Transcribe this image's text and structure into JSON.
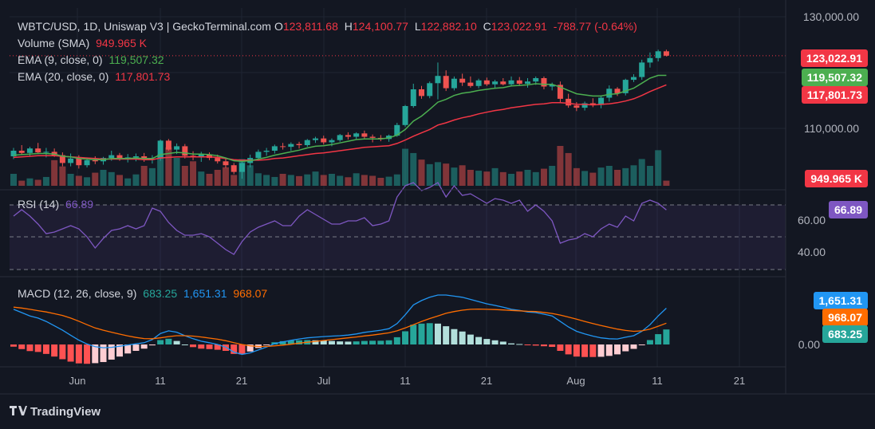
{
  "header": {
    "symbol": "WBTC/USD, 1D, Uniswap V3 | GeckoTerminal.com",
    "o_label": "O",
    "open": "123,811.68",
    "h_label": "H",
    "high": "124,100.77",
    "l_label": "L",
    "low": "122,882.10",
    "c_label": "C",
    "close": "123,022.91",
    "change": "-788.77 (-0.64%)"
  },
  "legend": {
    "volume_label": "Volume (SMA)",
    "volume_value": "949.965 K",
    "ema9_label": "EMA (9, close, 0)",
    "ema9_value": "119,507.32",
    "ema20_label": "EMA (20, close, 0)",
    "ema20_value": "117,801.73",
    "rsi_label": "RSI (14)",
    "rsi_value": "66.89",
    "macd_label": "MACD (12, 26, close, 9)",
    "macd_hist": "683.25",
    "macd_line": "1,651.31",
    "macd_signal": "968.07"
  },
  "price_axis": {
    "ticks": [
      "130,000.00",
      "110,000.00"
    ]
  },
  "rsi_axis": {
    "ticks": [
      "60.00",
      "40.00"
    ]
  },
  "macd_axis": {
    "ticks": [
      "0.00"
    ]
  },
  "price_tags": {
    "close": "123,022.91",
    "ema9": "119,507.32",
    "ema20": "117,801.73",
    "volume": "949.965 K",
    "rsi": "66.89",
    "macd_line": "1,651.31",
    "macd_signal": "968.07",
    "macd_hist": "683.25"
  },
  "x_axis": {
    "ticks": [
      "Jun",
      "11",
      "21",
      "Jul",
      "11",
      "21",
      "Aug",
      "11",
      "21"
    ]
  },
  "brand": {
    "name": "TradingView"
  },
  "colors": {
    "up": "#26a69a",
    "down": "#ef5350",
    "ema9": "#4caf50",
    "ema20": "#f23645",
    "rsi": "#7e57c2",
    "macd": "#2196f3",
    "signal": "#ff6d00",
    "background": "#131722"
  },
  "chart_data": [
    {
      "type": "candlestick",
      "title": "WBTC/USD, 1D, Uniswap V3",
      "ylim": [
        103000,
        131000
      ],
      "ohlc": [
        [
          105000,
          106500,
          104500,
          106000
        ],
        [
          106000,
          107000,
          105200,
          105600
        ],
        [
          105600,
          106700,
          105000,
          106400
        ],
        [
          106400,
          107400,
          105400,
          105700
        ],
        [
          105700,
          106500,
          104800,
          105800
        ],
        [
          105800,
          106400,
          104900,
          105200
        ],
        [
          105200,
          105700,
          103200,
          103800
        ],
        [
          103800,
          105500,
          103200,
          104600
        ],
        [
          104600,
          105200,
          102800,
          103400
        ],
        [
          103400,
          104800,
          103000,
          104300
        ],
        [
          104300,
          105000,
          103600,
          104100
        ],
        [
          104100,
          104900,
          103500,
          104700
        ],
        [
          104700,
          106000,
          104200,
          105200
        ],
        [
          105200,
          105600,
          104200,
          104500
        ],
        [
          104500,
          105400,
          103900,
          104800
        ],
        [
          104800,
          105500,
          104100,
          105000
        ],
        [
          105000,
          105600,
          104000,
          104400
        ],
        [
          104400,
          105200,
          103700,
          104600
        ],
        [
          104600,
          108000,
          104200,
          107800
        ],
        [
          107800,
          108100,
          106000,
          106200
        ],
        [
          106200,
          107300,
          105400,
          106800
        ],
        [
          106800,
          107200,
          104600,
          105100
        ],
        [
          105100,
          105900,
          104300,
          104800
        ],
        [
          104800,
          105800,
          104000,
          105300
        ],
        [
          105300,
          105700,
          104300,
          104700
        ],
        [
          104700,
          105300,
          103700,
          104100
        ],
        [
          104100,
          104600,
          102900,
          103400
        ],
        [
          103400,
          103800,
          101800,
          102200
        ],
        [
          102200,
          104200,
          101000,
          103800
        ],
        [
          103800,
          105300,
          103000,
          104700
        ],
        [
          104700,
          106200,
          104200,
          105800
        ],
        [
          105800,
          106500,
          105100,
          106000
        ],
        [
          106000,
          107100,
          105500,
          106800
        ],
        [
          106800,
          107400,
          106200,
          106700
        ],
        [
          106700,
          107500,
          106000,
          107200
        ],
        [
          107200,
          107600,
          106400,
          107000
        ],
        [
          107000,
          108100,
          106700,
          107900
        ],
        [
          107900,
          108500,
          107400,
          108200
        ],
        [
          108200,
          108700,
          107100,
          107500
        ],
        [
          107500,
          108200,
          106800,
          107900
        ],
        [
          107900,
          109000,
          107600,
          108800
        ],
        [
          108800,
          109300,
          108000,
          108500
        ],
        [
          108500,
          109300,
          108100,
          109100
        ],
        [
          109100,
          109600,
          108200,
          108500
        ],
        [
          108500,
          108900,
          107500,
          108300
        ],
        [
          108300,
          108800,
          107700,
          108100
        ],
        [
          108100,
          108900,
          107600,
          108700
        ],
        [
          108700,
          111000,
          108500,
          110600
        ],
        [
          110600,
          114200,
          110300,
          114000
        ],
        [
          114000,
          118000,
          113700,
          117000
        ],
        [
          117000,
          117600,
          115300,
          115800
        ],
        [
          115800,
          118400,
          115400,
          118100
        ],
        [
          118100,
          121800,
          115200,
          119400
        ],
        [
          119400,
          120400,
          116700,
          117200
        ],
        [
          117200,
          119300,
          116800,
          118900
        ],
        [
          118900,
          119800,
          117600,
          118200
        ],
        [
          118200,
          119300,
          117300,
          117600
        ],
        [
          117600,
          118900,
          117200,
          118600
        ],
        [
          118600,
          119100,
          117600,
          117900
        ],
        [
          117900,
          118700,
          117200,
          118400
        ],
        [
          118400,
          119000,
          117700,
          117900
        ],
        [
          117900,
          119300,
          117600,
          118600
        ],
        [
          118600,
          119200,
          117600,
          118000
        ],
        [
          118000,
          119000,
          117300,
          118400
        ],
        [
          118400,
          119300,
          117800,
          119000
        ],
        [
          119000,
          119300,
          117000,
          117500
        ],
        [
          117500,
          118200,
          116800,
          117800
        ],
        [
          117800,
          118400,
          114500,
          115300
        ],
        [
          115300,
          116200,
          113700,
          114100
        ],
        [
          114100,
          114700,
          113100,
          113700
        ],
        [
          113700,
          114800,
          113200,
          114500
        ],
        [
          114500,
          115400,
          113800,
          114200
        ],
        [
          114200,
          115900,
          113600,
          115500
        ],
        [
          115500,
          117700,
          114800,
          117100
        ],
        [
          117100,
          117400,
          115800,
          116300
        ],
        [
          116300,
          118900,
          115900,
          118700
        ],
        [
          118700,
          119700,
          118300,
          119200
        ],
        [
          119200,
          122300,
          118700,
          121800
        ],
        [
          121800,
          123600,
          120900,
          122600
        ],
        [
          122600,
          124100,
          122000,
          123811
        ],
        [
          123811,
          124100,
          122882,
          123023
        ]
      ],
      "ema9": [
        105200,
        105300,
        105400,
        105500,
        105500,
        105400,
        105000,
        104900,
        104600,
        104500,
        104400,
        104400,
        104600,
        104600,
        104600,
        104700,
        104600,
        104600,
        105300,
        105500,
        105700,
        105600,
        105400,
        105400,
        105300,
        105100,
        104700,
        104200,
        104100,
        104200,
        104500,
        104800,
        105200,
        105500,
        105800,
        106100,
        106500,
        106800,
        106900,
        107100,
        107400,
        107700,
        108000,
        108100,
        108100,
        108100,
        108300,
        108800,
        109800,
        111300,
        112200,
        113400,
        114700,
        115200,
        115900,
        116300,
        116500,
        116800,
        117000,
        117200,
        117300,
        117600,
        117700,
        117800,
        118000,
        117900,
        117900,
        117400,
        116800,
        116200,
        116000,
        115800,
        115800,
        116100,
        116200,
        116700,
        117200,
        118100,
        119000,
        119500,
        119507
      ],
      "ema20": [
        104800,
        104900,
        105000,
        105100,
        105100,
        105100,
        105000,
        104900,
        104800,
        104700,
        104600,
        104500,
        104500,
        104500,
        104500,
        104500,
        104400,
        104400,
        104700,
        104800,
        104900,
        104900,
        104900,
        104900,
        104900,
        104800,
        104600,
        104400,
        104300,
        104300,
        104300,
        104400,
        104600,
        104700,
        104900,
        105100,
        105300,
        105500,
        105600,
        105800,
        106000,
        106200,
        106400,
        106600,
        106700,
        106800,
        106900,
        107300,
        107900,
        108600,
        109200,
        109800,
        110600,
        111000,
        111500,
        111900,
        112200,
        112600,
        112900,
        113200,
        113400,
        113700,
        113900,
        114100,
        114300,
        114400,
        114600,
        114600,
        114500,
        114300,
        114300,
        114200,
        114300,
        114400,
        114600,
        114900,
        115300,
        115900,
        116600,
        117200,
        117802
      ],
      "volume": [
        420,
        180,
        260,
        210,
        310,
        900,
        680,
        420,
        350,
        300,
        460,
        560,
        480,
        380,
        260,
        400,
        700,
        620,
        1100,
        1350,
        980,
        700,
        860,
        500,
        420,
        560,
        650,
        380,
        940,
        720,
        440,
        380,
        310,
        420,
        380,
        340,
        400,
        500,
        380,
        420,
        350,
        300,
        440,
        380,
        350,
        280,
        320,
        400,
        1300,
        1150,
        920,
        760,
        830,
        780,
        640,
        720,
        560,
        530,
        500,
        620,
        480,
        420,
        500,
        560,
        480,
        600,
        700,
        1400,
        1150,
        620,
        520,
        460,
        640,
        700,
        560,
        620,
        720,
        940,
        700,
        1250,
        180
      ],
      "rsi": [
        63,
        67,
        63,
        58,
        52,
        53,
        55,
        57,
        55,
        50,
        43,
        49,
        54,
        55,
        57,
        55,
        57,
        68,
        66,
        59,
        54,
        51,
        51,
        52,
        50,
        46,
        42,
        39,
        47,
        53,
        56,
        58,
        60,
        57,
        57,
        63,
        67,
        64,
        61,
        58,
        58,
        60,
        60,
        62,
        57,
        58,
        60,
        75,
        82,
        84,
        79,
        81,
        84,
        75,
        82,
        76,
        77,
        74,
        71,
        74,
        73,
        71,
        73,
        66,
        70,
        66,
        60,
        46,
        48,
        49,
        52,
        50,
        55,
        58,
        56,
        63,
        60,
        71,
        73,
        71,
        66.89
      ],
      "macd": [
        1600,
        1450,
        1300,
        1200,
        1050,
        850,
        650,
        420,
        200,
        20,
        -100,
        -150,
        -130,
        -80,
        -20,
        30,
        80,
        220,
        500,
        620,
        560,
        400,
        260,
        150,
        80,
        0,
        -120,
        -350,
        -450,
        -380,
        -250,
        -120,
        40,
        120,
        190,
        250,
        300,
        330,
        360,
        380,
        400,
        430,
        480,
        550,
        600,
        650,
        720,
        950,
        1350,
        1800,
        2000,
        2150,
        2250,
        2250,
        2200,
        2150,
        2050,
        1950,
        1850,
        1780,
        1700,
        1600,
        1550,
        1480,
        1450,
        1380,
        1300,
        1050,
        800,
        600,
        480,
        380,
        300,
        260,
        250,
        330,
        400,
        600,
        900,
        1300,
        1651
      ],
      "macd_signal": [
        1700,
        1660,
        1600,
        1540,
        1480,
        1400,
        1320,
        1200,
        1060,
        900,
        750,
        650,
        560,
        470,
        390,
        320,
        270,
        260,
        300,
        360,
        400,
        400,
        380,
        340,
        290,
        240,
        170,
        80,
        0,
        -60,
        -90,
        -90,
        -60,
        -30,
        10,
        60,
        100,
        140,
        180,
        220,
        260,
        300,
        340,
        390,
        430,
        480,
        530,
        620,
        750,
        900,
        1050,
        1180,
        1300,
        1420,
        1500,
        1560,
        1600,
        1610,
        1600,
        1590,
        1570,
        1550,
        1530,
        1510,
        1500,
        1460,
        1410,
        1340,
        1250,
        1150,
        1050,
        950,
        860,
        780,
        700,
        640,
        600,
        620,
        700,
        830,
        968
      ]
    }
  ]
}
